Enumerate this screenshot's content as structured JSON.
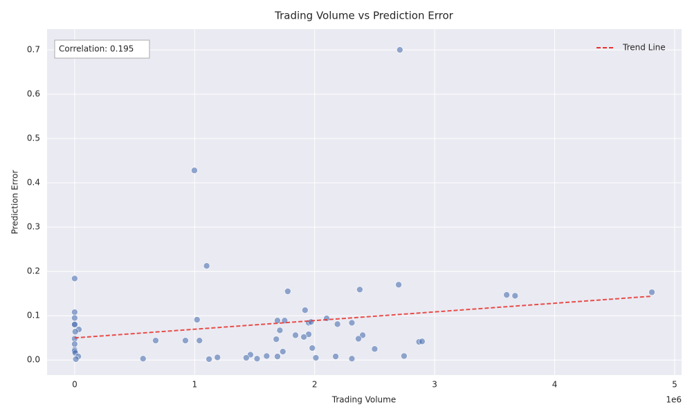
{
  "chart_data": {
    "type": "scatter",
    "title": "Trading Volume vs Prediction Error",
    "x_label": "Trading Volume",
    "y_label": "Prediction Error",
    "x_offset_label": "1e6",
    "annotation": "Correlation: 0.195",
    "x": [
      2710000,
      998000,
      1100000,
      0,
      4810000,
      3600000,
      3670000,
      2700000,
      2376000,
      1776000,
      1920000,
      0,
      0,
      1020000,
      1690000,
      1750000,
      2100000,
      1950000,
      1970000,
      2190000,
      2310000,
      0,
      0,
      35000,
      5000,
      1710000,
      1840000,
      1950000,
      1910000,
      2400000,
      2365000,
      1680000,
      675000,
      923000,
      1040000,
      2870000,
      2895000,
      0,
      0,
      0,
      0,
      5000,
      30000,
      10000,
      1980000,
      2500000,
      1735000,
      1465000,
      1600000,
      1690000,
      2175000,
      2745000,
      1190000,
      1430000,
      1520000,
      2010000,
      2310000,
      570000,
      1120000
    ],
    "values": [
      0.7,
      0.428,
      0.2125,
      0.184,
      0.153,
      0.147,
      0.145,
      0.17,
      0.159,
      0.155,
      0.1125,
      0.108,
      0.095,
      0.091,
      0.089,
      0.089,
      0.094,
      0.084,
      0.086,
      0.081,
      0.084,
      0.081,
      0.08,
      0.069,
      0.064,
      0.067,
      0.056,
      0.058,
      0.052,
      0.056,
      0.048,
      0.047,
      0.044,
      0.044,
      0.044,
      0.041,
      0.042,
      0.048,
      0.036,
      0.023,
      0.02,
      0.016,
      0.008,
      0.002,
      0.027,
      0.025,
      0.019,
      0.012,
      0.009,
      0.008,
      0.008,
      0.009,
      0.006,
      0.005,
      0.003,
      0.005,
      0.003,
      0.003,
      0.002
    ],
    "color": "#4c72b0",
    "trend": {
      "name": "Trend Line",
      "x": [
        0,
        4810000
      ],
      "values": [
        0.05,
        0.144
      ],
      "color": "#e8302a"
    },
    "xlim": [
      -230000,
      5058000
    ],
    "ylim": [
      -0.034,
      0.747
    ],
    "xticks": [
      0,
      {
        "value": 1000000,
        "label": "1"
      },
      {
        "value": 2000000,
        "label": "2"
      },
      {
        "value": 3000000,
        "label": "3"
      },
      {
        "value": 4000000,
        "label": "4"
      },
      {
        "value": 5000000,
        "label": "5"
      }
    ],
    "yticks": [
      {
        "value": 0,
        "label": "0.0"
      },
      0.1,
      0.2,
      0.3,
      0.4,
      0.5,
      0.6,
      0.7
    ],
    "grid": true,
    "legend": "upper right"
  }
}
